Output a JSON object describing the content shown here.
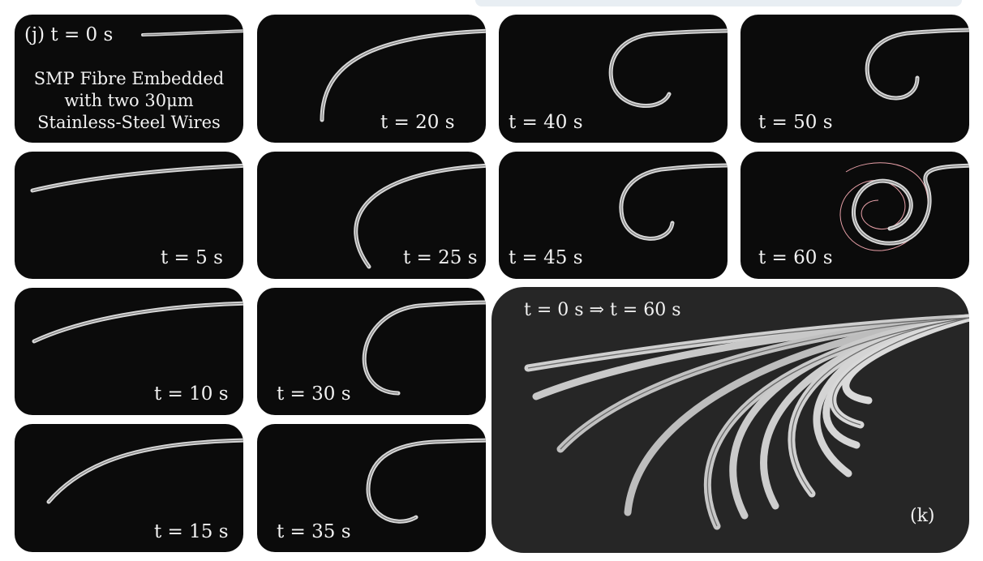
{
  "panels": [
    {
      "id": "t0",
      "label": "(j) t = 0 s",
      "caption": [
        "SMP Fibre Embedded",
        "with two 30μm",
        "Stainless-Steel Wires"
      ]
    },
    {
      "id": "t5",
      "label": "t = 5 s"
    },
    {
      "id": "t10",
      "label": "t = 10 s"
    },
    {
      "id": "t15",
      "label": "t = 15 s"
    },
    {
      "id": "t20",
      "label": "t = 20 s"
    },
    {
      "id": "t25",
      "label": "t = 25 s"
    },
    {
      "id": "t30",
      "label": "t = 30 s"
    },
    {
      "id": "t35",
      "label": "t = 35 s"
    },
    {
      "id": "t40",
      "label": "t = 40 s"
    },
    {
      "id": "t45",
      "label": "t = 45 s"
    },
    {
      "id": "t50",
      "label": "t = 50 s"
    },
    {
      "id": "t60",
      "label": "t = 60 s"
    }
  ],
  "composite": {
    "label": "t = 0 s ⇒ t = 60 s",
    "tag": "(k)"
  }
}
